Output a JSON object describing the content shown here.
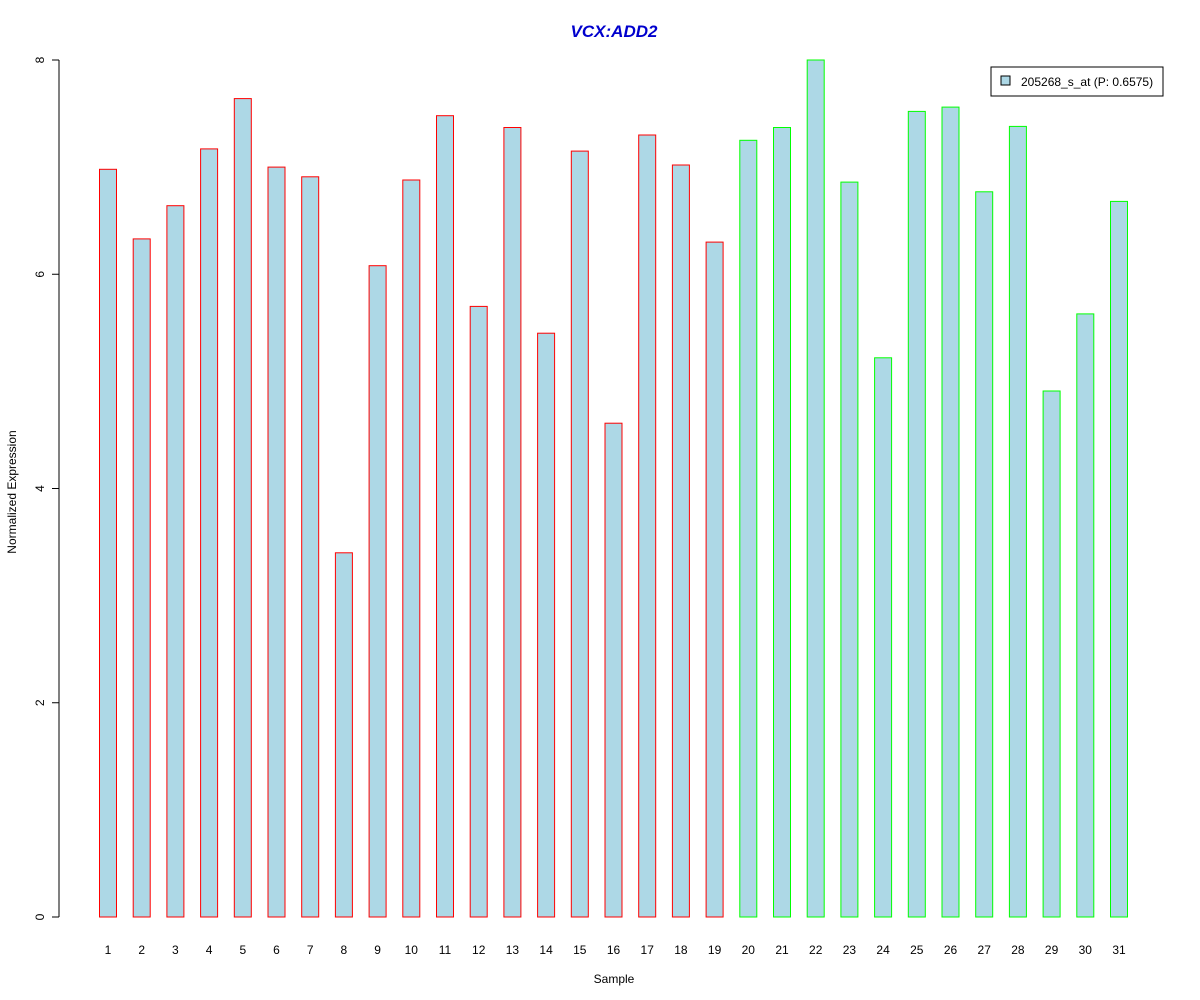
{
  "chart_data": {
    "type": "bar",
    "title": "VCX:ADD2",
    "xlabel": "Sample",
    "ylabel": "Normalized Expression",
    "ylim": [
      0,
      8
    ],
    "yticks": [
      "0",
      "2",
      "4",
      "6",
      "8"
    ],
    "grid": false,
    "legend_position": "top-right",
    "categories": [
      "1",
      "2",
      "3",
      "4",
      "5",
      "6",
      "7",
      "8",
      "9",
      "10",
      "11",
      "12",
      "13",
      "14",
      "15",
      "16",
      "17",
      "18",
      "19",
      "20",
      "21",
      "22",
      "23",
      "24",
      "25",
      "26",
      "27",
      "28",
      "29",
      "30",
      "31"
    ],
    "series": [
      {
        "name": "205268_s_at (P: 0.6575)",
        "values": [
          6.98,
          6.33,
          6.64,
          7.17,
          7.64,
          7.0,
          6.91,
          3.4,
          6.08,
          6.88,
          7.48,
          5.7,
          7.37,
          5.45,
          7.15,
          4.61,
          7.3,
          7.02,
          6.3,
          7.25,
          7.37,
          8.0,
          6.86,
          5.22,
          7.52,
          7.56,
          6.77,
          7.38,
          4.91,
          5.63,
          6.68
        ]
      }
    ],
    "groups": [
      {
        "range": [
          1,
          19
        ],
        "border_color": "#ff0000"
      },
      {
        "range": [
          20,
          31
        ],
        "border_color": "#00ff00"
      }
    ],
    "colors": {
      "bar_fill": "#add8e6",
      "title": "#0000cd",
      "axis": "#000000"
    }
  }
}
